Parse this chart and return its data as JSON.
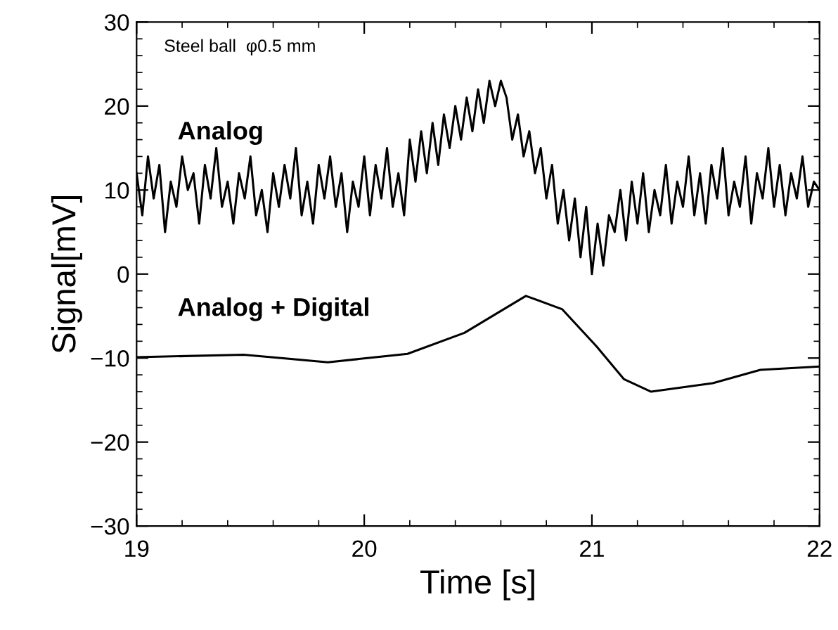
{
  "chart_data": {
    "type": "line",
    "xlabel": "Time [s]",
    "ylabel": "Signal[mV]",
    "annotations": [
      "Steel ball  φ0.5 mm",
      "Analog",
      "Analog + Digital"
    ],
    "xlim": [
      19,
      22
    ],
    "xticks": [
      19,
      20,
      21,
      22
    ],
    "ylim": [
      -30,
      30
    ],
    "yticks": [
      -30,
      -20,
      -10,
      0,
      10,
      20,
      30
    ],
    "marker": "none",
    "line_style": "solid",
    "series": [
      {
        "color": "#000000",
        "x": [
          19.0,
          19.025,
          19.05,
          19.075,
          19.1,
          19.125,
          19.15,
          19.175,
          19.2,
          19.225,
          19.25,
          19.275,
          19.3,
          19.325,
          19.35,
          19.375,
          19.4,
          19.425,
          19.45,
          19.475,
          19.5,
          19.525,
          19.55,
          19.575,
          19.6,
          19.625,
          19.65,
          19.675,
          19.7,
          19.725,
          19.75,
          19.775,
          19.8,
          19.825,
          19.85,
          19.875,
          19.9,
          19.925,
          19.95,
          19.975,
          20.0,
          20.025,
          20.05,
          20.075,
          20.1,
          20.125,
          20.15,
          20.175,
          20.2,
          20.225,
          20.25,
          20.275,
          20.3,
          20.325,
          20.35,
          20.375,
          20.4,
          20.425,
          20.45,
          20.475,
          20.5,
          20.525,
          20.55,
          20.575,
          20.6,
          20.625,
          20.65,
          20.675,
          20.7,
          20.725,
          20.75,
          20.775,
          20.8,
          20.825,
          20.85,
          20.875,
          20.9,
          20.925,
          20.95,
          20.975,
          21.0,
          21.025,
          21.05,
          21.075,
          21.1,
          21.125,
          21.15,
          21.175,
          21.2,
          21.225,
          21.25,
          21.275,
          21.3,
          21.325,
          21.35,
          21.375,
          21.4,
          21.425,
          21.45,
          21.475,
          21.5,
          21.525,
          21.55,
          21.575,
          21.6,
          21.625,
          21.65,
          21.675,
          21.7,
          21.725,
          21.75,
          21.775,
          21.8,
          21.825,
          21.85,
          21.875,
          21.9,
          21.925,
          21.95,
          21.975,
          22.0
        ],
        "values": [
          12,
          7,
          14,
          9,
          13,
          5,
          11,
          8,
          14,
          10,
          12,
          6,
          13,
          9,
          15,
          8,
          11,
          6,
          12,
          9,
          14,
          7,
          10,
          5,
          12,
          8,
          13,
          9,
          15,
          7,
          11,
          6,
          13,
          9,
          14,
          8,
          12,
          5,
          11,
          8,
          14,
          7,
          13,
          9,
          15,
          8,
          12,
          7,
          16,
          11,
          17,
          12,
          18,
          13,
          19,
          15,
          20,
          16,
          21,
          17,
          22,
          18,
          23,
          20,
          23,
          21,
          16,
          19,
          14,
          17,
          12,
          15,
          9,
          13,
          6,
          10,
          4,
          9,
          2,
          8,
          0,
          6,
          1,
          7,
          5,
          10,
          4,
          11,
          6,
          12,
          5,
          10,
          7,
          13,
          6,
          11,
          8,
          14,
          7,
          12,
          6,
          13,
          9,
          15,
          7,
          11,
          8,
          14,
          6,
          12,
          9,
          15,
          8,
          13,
          7,
          12,
          9,
          14,
          8,
          11,
          10
        ]
      },
      {
        "color": "#000000",
        "x": [
          19,
          19.47,
          19.84,
          20.19,
          20.44,
          20.71,
          20.87,
          21.02,
          21.14,
          21.26,
          21.53,
          21.74,
          22
        ],
        "values": [
          -9.9,
          -9.6,
          -10.5,
          -9.5,
          -7.0,
          -2.6,
          -4.2,
          -8.6,
          -12.5,
          -14.0,
          -13.0,
          -11.4,
          -11.0
        ]
      }
    ]
  }
}
